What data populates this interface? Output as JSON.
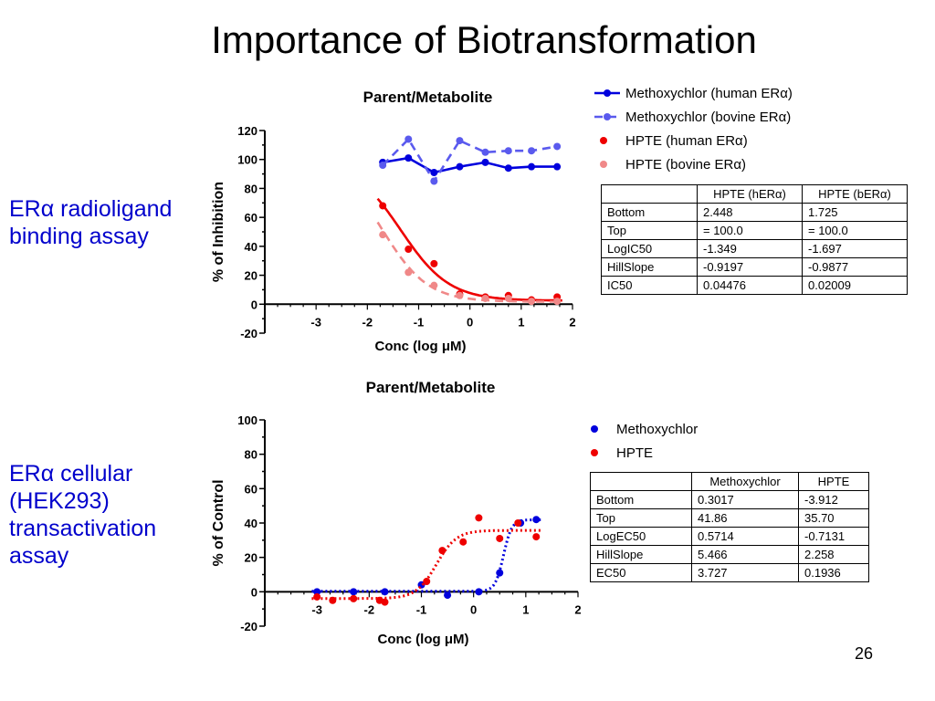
{
  "slide": {
    "title": "Importance of Biotransformation",
    "number": "26"
  },
  "labels": {
    "assay1": [
      "ERα radioligand",
      "binding assay"
    ],
    "assay2": [
      "ERα cellular",
      "(HEK293)",
      "transactivation",
      "assay"
    ]
  },
  "chart_data": [
    {
      "type": "scatter",
      "title": "Parent/Metabolite",
      "xlabel": "Conc (log μM)",
      "ylabel": "% of Inhibition",
      "xlim": [
        -4,
        2
      ],
      "ylim": [
        -20,
        120
      ],
      "xticks": [
        -3,
        -2,
        -1,
        0,
        1,
        2
      ],
      "yticks": [
        -20,
        0,
        20,
        40,
        60,
        80,
        100,
        120
      ],
      "legend_position": "top-right",
      "series": [
        {
          "name": "Methoxychlor (human ERα)",
          "color": "#0000dd",
          "style": "solid",
          "marker": "circle",
          "x": [
            -1.7,
            -1.2,
            -0.7,
            -0.2,
            0.3,
            0.75,
            1.2,
            1.7
          ],
          "y": [
            98,
            101,
            91,
            95,
            98,
            94,
            95,
            95
          ],
          "connect": "points"
        },
        {
          "name": "Methoxychlor (bovine ERα)",
          "color": "#5a5aee",
          "style": "dashed",
          "marker": "circle",
          "x": [
            -1.7,
            -1.2,
            -0.7,
            -0.2,
            0.3,
            0.75,
            1.2,
            1.7
          ],
          "y": [
            96,
            114,
            85,
            113,
            105,
            106,
            106,
            109
          ],
          "connect": "points"
        },
        {
          "name": "HPTE (human ERα)",
          "color": "#ee0000",
          "style": "solid",
          "marker": "circle",
          "x": [
            -1.7,
            -1.2,
            -0.7,
            -0.2,
            0.3,
            0.75,
            1.2,
            1.7
          ],
          "y": [
            68,
            38,
            28,
            7,
            5,
            6,
            3,
            5
          ],
          "curve": {
            "bottom": 2.448,
            "top": 100,
            "logic50": -1.349,
            "hill": -0.9197
          }
        },
        {
          "name": "HPTE (bovine ERα)",
          "color": "#f08888",
          "style": "dashed",
          "marker": "circle",
          "x": [
            -1.7,
            -1.2,
            -0.7,
            -0.2,
            0.3,
            0.75,
            1.2,
            1.7
          ],
          "y": [
            48,
            22,
            13,
            6,
            4,
            4,
            2,
            2
          ],
          "curve": {
            "bottom": 1.725,
            "top": 100,
            "logic50": -1.697,
            "hill": -0.9877
          }
        }
      ],
      "table": {
        "headers": [
          "",
          "HPTE (hERα)",
          "HPTE (bERα)"
        ],
        "rows": [
          [
            "Bottom",
            "2.448",
            "1.725"
          ],
          [
            "Top",
            "= 100.0",
            "= 100.0"
          ],
          [
            "LogIC50",
            "-1.349",
            "-1.697"
          ],
          [
            "HillSlope",
            "-0.9197",
            "-0.9877"
          ],
          [
            "IC50",
            "0.04476",
            "0.02009"
          ]
        ]
      }
    },
    {
      "type": "scatter",
      "title": "Parent/Metabolite",
      "xlabel": "Conc (log μM)",
      "ylabel": "% of Control",
      "xlim": [
        -4,
        2
      ],
      "ylim": [
        -20,
        100
      ],
      "xticks": [
        -3,
        -2,
        -1,
        0,
        1,
        2
      ],
      "yticks": [
        -20,
        0,
        20,
        40,
        60,
        80,
        100
      ],
      "legend_position": "top-right",
      "series": [
        {
          "name": "Methoxychlor",
          "color": "#0000dd",
          "style": "dotted",
          "marker": "circle",
          "x": [
            -3.0,
            -2.3,
            -1.7,
            -1.0,
            -0.5,
            0.1,
            0.5,
            0.9,
            1.2
          ],
          "y": [
            0,
            0,
            0,
            4,
            -2,
            0,
            11,
            40,
            42
          ],
          "curve": {
            "bottom": 0.3017,
            "top": 41.86,
            "logic50": 0.5714,
            "hill": 5.466
          }
        },
        {
          "name": "HPTE",
          "color": "#ee0000",
          "style": "dotted",
          "marker": "circle",
          "x": [
            -3.0,
            -2.7,
            -2.3,
            -1.8,
            -1.7,
            -0.9,
            -0.6,
            -0.2,
            0.1,
            0.5,
            0.85,
            1.2
          ],
          "y": [
            -3,
            -5,
            -4,
            -5,
            -6,
            6,
            24,
            29,
            43,
            31,
            40,
            32
          ],
          "curve": {
            "bottom": -3.912,
            "top": 35.7,
            "logic50": -0.7131,
            "hill": 2.258
          }
        }
      ],
      "table": {
        "headers": [
          "",
          "Methoxychlor",
          "HPTE"
        ],
        "rows": [
          [
            "Bottom",
            "0.3017",
            "-3.912"
          ],
          [
            "Top",
            "41.86",
            "35.70"
          ],
          [
            "LogEC50",
            "0.5714",
            "-0.7131"
          ],
          [
            "HillSlope",
            "5.466",
            "2.258"
          ],
          [
            "EC50",
            "3.727",
            "0.1936"
          ]
        ]
      }
    }
  ]
}
